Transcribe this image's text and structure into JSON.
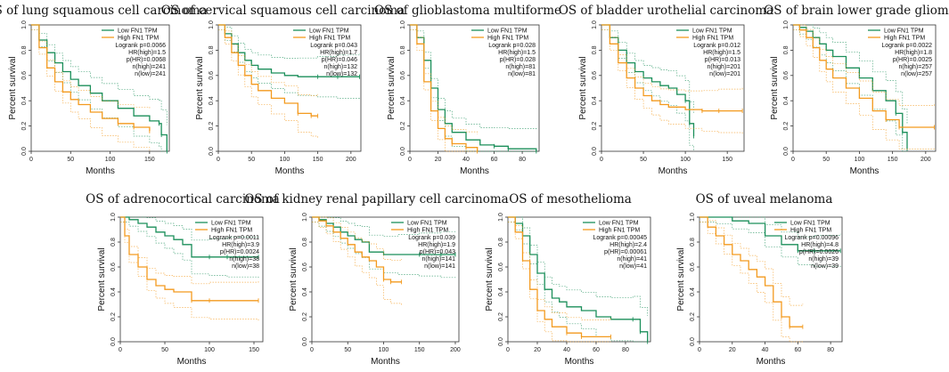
{
  "colors": {
    "low": "#1b8f5a",
    "high": "#f39a1e"
  },
  "chart_data": [
    {
      "type": "line",
      "title": "OS of lung squamous cell carcinoma",
      "xlabel": "Months",
      "ylabel": "Percent survival",
      "xlim": [
        0,
        175
      ],
      "ylim": [
        0,
        1
      ],
      "xticks": [
        0,
        50,
        100,
        150
      ],
      "yticks": [
        0,
        0.2,
        0.4,
        0.6,
        0.8,
        1.0
      ],
      "legend": [
        "Low FN1 TPM",
        "High FN1 TPM"
      ],
      "stats": [
        "Logrank p=0.0066",
        "HR(high)=1.5",
        "p(HR)=0.0068",
        "n(high)=241",
        "n(low)=241"
      ],
      "series": [
        {
          "name": "Low FN1 TPM",
          "x": [
            0,
            10,
            20,
            30,
            40,
            50,
            60,
            75,
            90,
            110,
            130,
            150,
            162,
            165,
            172
          ],
          "y": [
            1.0,
            0.88,
            0.78,
            0.7,
            0.63,
            0.57,
            0.52,
            0.46,
            0.4,
            0.34,
            0.28,
            0.24,
            0.22,
            0.13,
            0.0
          ]
        },
        {
          "name": "High FN1 TPM",
          "x": [
            0,
            10,
            20,
            30,
            40,
            50,
            60,
            75,
            90,
            110,
            130,
            150
          ],
          "y": [
            1.0,
            0.82,
            0.66,
            0.55,
            0.47,
            0.41,
            0.37,
            0.31,
            0.26,
            0.22,
            0.19,
            0.16
          ]
        }
      ]
    },
    {
      "type": "line",
      "title": "OS of cervical squamous cell carcinoma",
      "xlabel": "Months",
      "ylabel": "Percent survival",
      "xlim": [
        0,
        215
      ],
      "ylim": [
        0,
        1
      ],
      "xticks": [
        0,
        50,
        100,
        150,
        200
      ],
      "yticks": [
        0,
        0.2,
        0.4,
        0.6,
        0.8,
        1.0
      ],
      "legend": [
        "Low FN1 TPM",
        "High FN1 TPM"
      ],
      "stats": [
        "Logrank p=0.043",
        "HR(high)=1.7",
        "p(HR)=0.046",
        "n(high)=132",
        "n(low)=132"
      ],
      "series": [
        {
          "name": "Low FN1 TPM",
          "x": [
            0,
            10,
            20,
            30,
            40,
            50,
            60,
            80,
            100,
            120,
            150,
            180,
            213
          ],
          "y": [
            1.0,
            0.93,
            0.85,
            0.78,
            0.72,
            0.68,
            0.65,
            0.62,
            0.6,
            0.59,
            0.59,
            0.59,
            0.59
          ]
        },
        {
          "name": "High FN1 TPM",
          "x": [
            0,
            10,
            20,
            30,
            40,
            50,
            60,
            80,
            100,
            120,
            140,
            150
          ],
          "y": [
            1.0,
            0.9,
            0.78,
            0.68,
            0.6,
            0.53,
            0.48,
            0.42,
            0.38,
            0.3,
            0.28,
            0.28
          ]
        }
      ]
    },
    {
      "type": "line",
      "title": "OS of glioblastoma multiforme",
      "xlabel": "Months",
      "ylabel": "Percent survival",
      "xlim": [
        0,
        92
      ],
      "ylim": [
        0,
        1
      ],
      "xticks": [
        0,
        20,
        40,
        60,
        80
      ],
      "yticks": [
        0,
        0.2,
        0.4,
        0.6,
        0.8,
        1.0
      ],
      "legend": [
        "Low FN1 TPM",
        "High FN1 TPM"
      ],
      "stats": [
        "Logrank p=0.028",
        "HR(high)=1.5",
        "p(HR)=0.028",
        "n(high)=81",
        "n(low)=81"
      ],
      "series": [
        {
          "name": "Low FN1 TPM",
          "x": [
            0,
            5,
            10,
            15,
            20,
            25,
            30,
            40,
            50,
            60,
            70,
            90
          ],
          "y": [
            1.0,
            0.9,
            0.72,
            0.5,
            0.33,
            0.22,
            0.15,
            0.09,
            0.05,
            0.04,
            0.02,
            0.0
          ]
        },
        {
          "name": "High FN1 TPM",
          "x": [
            0,
            5,
            10,
            15,
            20,
            25,
            30,
            40,
            48
          ],
          "y": [
            1.0,
            0.85,
            0.55,
            0.32,
            0.18,
            0.1,
            0.06,
            0.03,
            0.0
          ]
        }
      ]
    },
    {
      "type": "line",
      "title": "OS of bladder urothelial carcinoma",
      "xlabel": "Months",
      "ylabel": "Percent survival",
      "xlim": [
        0,
        170
      ],
      "ylim": [
        0,
        1
      ],
      "xticks": [
        0,
        50,
        100,
        150
      ],
      "yticks": [
        0,
        0.2,
        0.4,
        0.6,
        0.8,
        1.0
      ],
      "legend": [
        "Low FN1 TPM",
        "High FN1 TPM"
      ],
      "stats": [
        "Logrank p=0.012",
        "HR(high)=1.5",
        "p(HR)=0.013",
        "n(high)=201",
        "n(low)=201"
      ],
      "series": [
        {
          "name": "Low FN1 TPM",
          "x": [
            0,
            10,
            20,
            30,
            40,
            50,
            60,
            70,
            80,
            90,
            100,
            105,
            110
          ],
          "y": [
            1.0,
            0.9,
            0.8,
            0.7,
            0.63,
            0.58,
            0.55,
            0.52,
            0.5,
            0.45,
            0.4,
            0.22,
            0.12
          ]
        },
        {
          "name": "High FN1 TPM",
          "x": [
            0,
            10,
            20,
            30,
            40,
            50,
            60,
            70,
            80,
            100,
            120,
            140,
            168
          ],
          "y": [
            1.0,
            0.85,
            0.7,
            0.58,
            0.5,
            0.44,
            0.4,
            0.37,
            0.35,
            0.33,
            0.32,
            0.32,
            0.32
          ]
        }
      ]
    },
    {
      "type": "line",
      "title": "OS of brain lower grade glioma",
      "xlabel": "Months",
      "ylabel": "Percent survival",
      "xlim": [
        0,
        215
      ],
      "ylim": [
        0,
        1
      ],
      "xticks": [
        0,
        50,
        100,
        150,
        200
      ],
      "yticks": [
        0,
        0.2,
        0.4,
        0.6,
        0.8,
        1.0
      ],
      "legend": [
        "Low FN1 TPM",
        "High FN1 TPM"
      ],
      "stats": [
        "Logrank p=0.0022",
        "HR(high)=1.8",
        "p(HR)=0.0025",
        "n(high)=257",
        "n(low)=257"
      ],
      "series": [
        {
          "name": "Low FN1 TPM",
          "x": [
            0,
            10,
            20,
            30,
            40,
            50,
            60,
            80,
            100,
            120,
            140,
            155,
            165,
            172
          ],
          "y": [
            1.0,
            0.98,
            0.95,
            0.9,
            0.85,
            0.8,
            0.75,
            0.66,
            0.58,
            0.48,
            0.4,
            0.3,
            0.15,
            0.02
          ]
        },
        {
          "name": "High FN1 TPM",
          "x": [
            0,
            10,
            20,
            30,
            40,
            50,
            60,
            80,
            100,
            120,
            140,
            160,
            213
          ],
          "y": [
            1.0,
            0.96,
            0.9,
            0.82,
            0.72,
            0.65,
            0.58,
            0.5,
            0.42,
            0.32,
            0.25,
            0.19,
            0.19
          ]
        }
      ]
    },
    {
      "type": "line",
      "title": "OS of adrenocortical carcinoma",
      "xlabel": "Months",
      "ylabel": "Percent survival",
      "xlim": [
        0,
        160
      ],
      "ylim": [
        0,
        1
      ],
      "xticks": [
        0,
        50,
        100,
        150
      ],
      "yticks": [
        0,
        0.2,
        0.4,
        0.6,
        0.8,
        1.0
      ],
      "legend": [
        "Low FN1 TPM",
        "High FN1 TPM"
      ],
      "stats": [
        "Logrank p=0.0011",
        "HR(high)=3.9",
        "p(HR)=0.0024",
        "n(high)=38",
        "n(low)=38"
      ],
      "series": [
        {
          "name": "Low FN1 TPM",
          "x": [
            0,
            10,
            20,
            30,
            40,
            50,
            60,
            70,
            80,
            100,
            120,
            155
          ],
          "y": [
            1.0,
            0.98,
            0.95,
            0.92,
            0.88,
            0.85,
            0.82,
            0.78,
            0.68,
            0.68,
            0.68,
            0.68
          ]
        },
        {
          "name": "High FN1 TPM",
          "x": [
            0,
            5,
            10,
            20,
            30,
            40,
            50,
            60,
            80,
            100,
            155
          ],
          "y": [
            1.0,
            0.85,
            0.7,
            0.6,
            0.5,
            0.45,
            0.42,
            0.4,
            0.33,
            0.33,
            0.33
          ]
        }
      ]
    },
    {
      "type": "line",
      "title": "OS of kidney renal papillary cell carcinoma",
      "xlabel": "Months",
      "ylabel": "Percent survival",
      "xlim": [
        0,
        205
      ],
      "ylim": [
        0,
        1
      ],
      "xticks": [
        0,
        50,
        100,
        150,
        200
      ],
      "yticks": [
        0,
        0.2,
        0.4,
        0.6,
        0.8,
        1.0
      ],
      "legend": [
        "Low FN1 TPM",
        "High FN1 TPM"
      ],
      "stats": [
        "Logrank p=0.039",
        "HR(high)=1.9",
        "p(HR)=0.043",
        "n(high)=141",
        "n(low)=141"
      ],
      "series": [
        {
          "name": "Low FN1 TPM",
          "x": [
            0,
            10,
            20,
            30,
            40,
            50,
            60,
            70,
            80,
            100,
            120,
            150,
            180,
            200
          ],
          "y": [
            1.0,
            0.98,
            0.95,
            0.92,
            0.88,
            0.85,
            0.82,
            0.8,
            0.72,
            0.7,
            0.7,
            0.7,
            0.7,
            0.7
          ]
        },
        {
          "name": "High FN1 TPM",
          "x": [
            0,
            10,
            20,
            30,
            40,
            50,
            60,
            70,
            80,
            90,
            100,
            110,
            125
          ],
          "y": [
            1.0,
            0.97,
            0.93,
            0.88,
            0.83,
            0.78,
            0.72,
            0.68,
            0.65,
            0.6,
            0.5,
            0.48,
            0.48
          ]
        }
      ]
    },
    {
      "type": "line",
      "title": "OS of mesothelioma",
      "xlabel": "Months",
      "ylabel": "Percent survival",
      "xlim": [
        0,
        97
      ],
      "ylim": [
        0,
        1
      ],
      "xticks": [
        0,
        20,
        40,
        60,
        80
      ],
      "yticks": [
        0,
        0.2,
        0.4,
        0.6,
        0.8,
        1.0
      ],
      "legend": [
        "Low FN1 TPM",
        "High FN1 TPM"
      ],
      "stats": [
        "Logrank p=0.00045",
        "HR(high)=2.4",
        "p(HR)=0.00061",
        "n(high)=41",
        "n(low)=41"
      ],
      "series": [
        {
          "name": "Low FN1 TPM",
          "x": [
            0,
            5,
            10,
            15,
            20,
            25,
            30,
            35,
            40,
            50,
            60,
            70,
            85,
            90,
            95
          ],
          "y": [
            1.0,
            0.95,
            0.85,
            0.7,
            0.55,
            0.42,
            0.35,
            0.32,
            0.28,
            0.25,
            0.2,
            0.18,
            0.18,
            0.08,
            0.0
          ]
        },
        {
          "name": "High FN1 TPM",
          "x": [
            0,
            5,
            10,
            15,
            20,
            25,
            30,
            40,
            50,
            70
          ],
          "y": [
            1.0,
            0.88,
            0.65,
            0.42,
            0.25,
            0.18,
            0.12,
            0.07,
            0.04,
            0.04
          ]
        }
      ]
    },
    {
      "type": "line",
      "title": "OS of uveal melanoma",
      "xlabel": "Months",
      "ylabel": "Percent survival",
      "xlim": [
        0,
        87
      ],
      "ylim": [
        0,
        1
      ],
      "xticks": [
        0,
        20,
        40,
        60,
        80
      ],
      "yticks": [
        0,
        0.2,
        0.4,
        0.6,
        0.8,
        1.0
      ],
      "legend": [
        "Low FN1 TPM",
        "High FN1 TPM"
      ],
      "stats": [
        "Logrank p=0.00096",
        "HR(high)=4.8",
        "p(HR)=0.0026",
        "n(high)=39",
        "n(low)=39"
      ],
      "series": [
        {
          "name": "Low FN1 TPM",
          "x": [
            0,
            10,
            20,
            30,
            40,
            50,
            60,
            70,
            86
          ],
          "y": [
            1.0,
            1.0,
            0.97,
            0.95,
            0.85,
            0.78,
            0.73,
            0.73,
            0.73
          ]
        },
        {
          "name": "High FN1 TPM",
          "x": [
            0,
            5,
            10,
            15,
            20,
            25,
            30,
            35,
            40,
            45,
            50,
            55,
            63
          ],
          "y": [
            1.0,
            0.92,
            0.85,
            0.78,
            0.7,
            0.65,
            0.58,
            0.52,
            0.45,
            0.32,
            0.2,
            0.12,
            0.12
          ]
        }
      ]
    }
  ]
}
